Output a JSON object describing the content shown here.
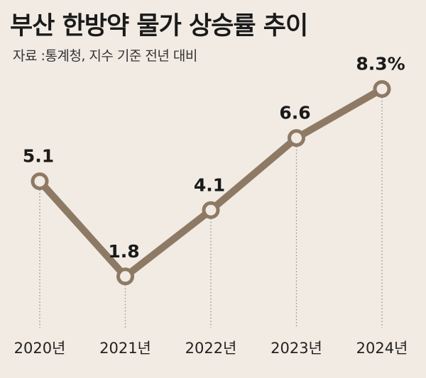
{
  "header": {
    "title": "부산 한방약 물가 상승률 추이",
    "source": "자료 :통계청, 지수 기준 전년 대비"
  },
  "chart_data": {
    "type": "line",
    "title": "부산 한방약 물가 상승률 추이",
    "subtitle": "자료 :통계청, 지수 기준 전년 대비",
    "categories": [
      "2020년",
      "2021년",
      "2022년",
      "2023년",
      "2024년"
    ],
    "series": [
      {
        "values": [
          5.1,
          1.8,
          4.1,
          6.6,
          8.3
        ]
      }
    ],
    "data_labels": [
      "5.1",
      "1.8",
      "4.1",
      "6.6",
      "8.3%"
    ],
    "xlabel": "",
    "ylabel": "",
    "ylim": [
      0,
      9
    ],
    "grid": false,
    "legend": "none",
    "colors": {
      "line": "#8e7a64",
      "marker_fill": "#f1ebe3",
      "drop_line": "#8c8c8c"
    }
  }
}
